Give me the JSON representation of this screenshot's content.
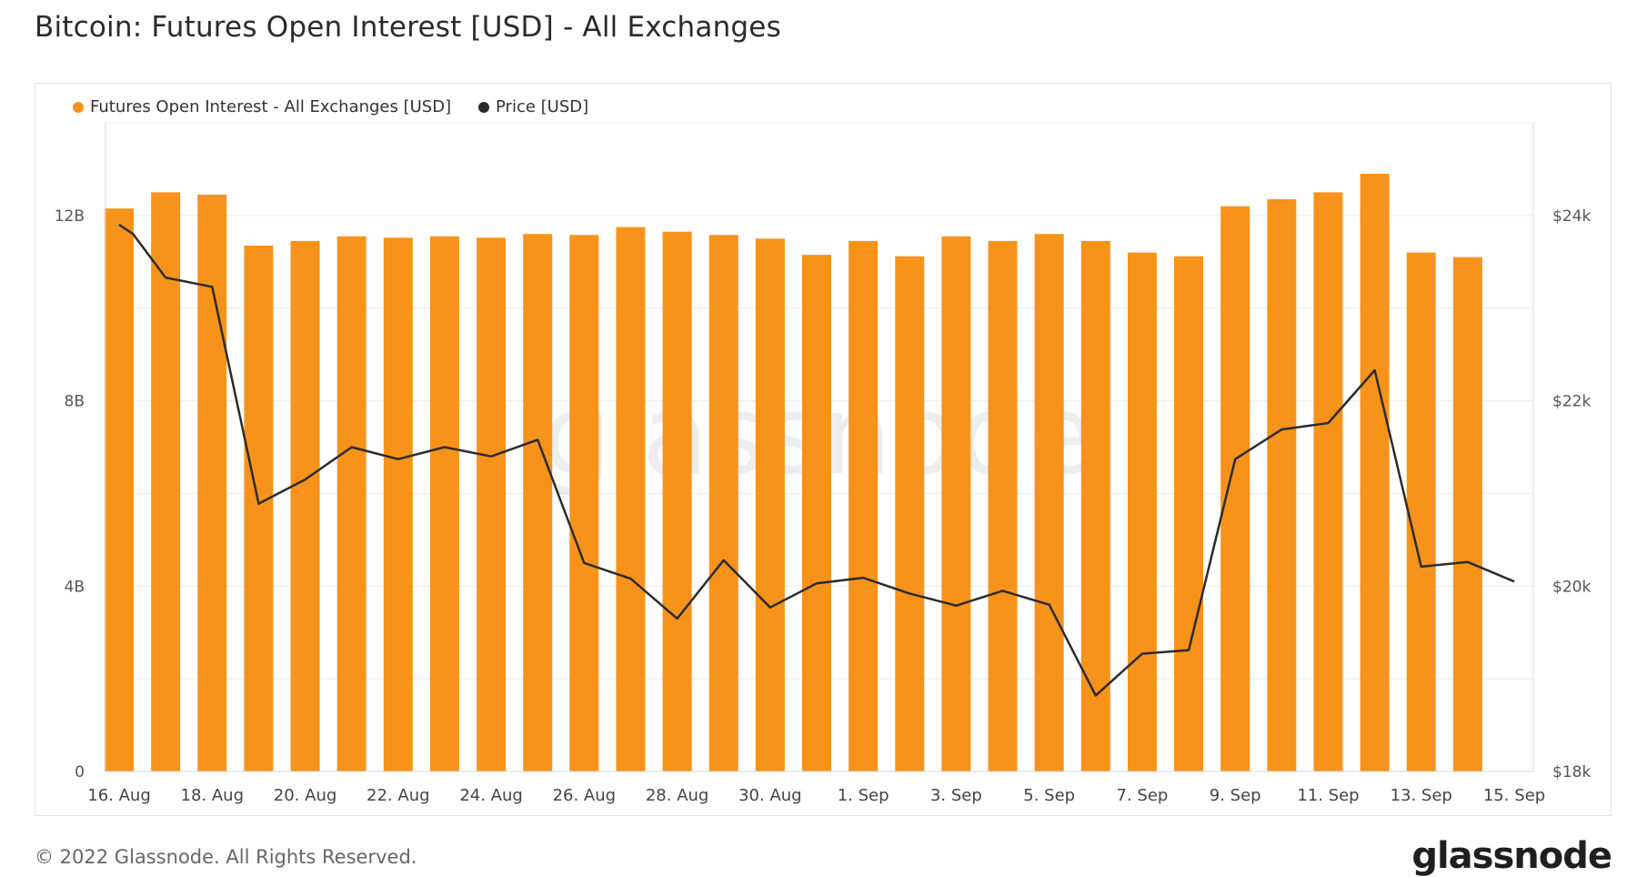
{
  "page": {
    "title": "Bitcoin: Futures Open Interest [USD] - All Exchanges",
    "copyright": "© 2022 Glassnode. All Rights Reserved.",
    "logo_text": "glassnode",
    "watermark_text": "glassnode"
  },
  "legend": [
    {
      "label": "Futures Open Interest - All Exchanges [USD]",
      "color": "#f7931a"
    },
    {
      "label": "Price [USD]",
      "color": "#2b2b2b"
    }
  ],
  "chart_data": {
    "type": "bar",
    "title": "Bitcoin: Futures Open Interest [USD] - All Exchanges",
    "x_tick_labels": [
      "16. Aug",
      "18. Aug",
      "20. Aug",
      "22. Aug",
      "24. Aug",
      "26. Aug",
      "28. Aug",
      "30. Aug",
      "1. Sep",
      "3. Sep",
      "5. Sep",
      "7. Sep",
      "9. Sep",
      "11. Sep",
      "13. Sep",
      "15. Sep"
    ],
    "x_tick_dates": [
      "2022-08-16",
      "2022-08-18",
      "2022-08-20",
      "2022-08-22",
      "2022-08-24",
      "2022-08-26",
      "2022-08-28",
      "2022-08-30",
      "2022-09-01",
      "2022-09-03",
      "2022-09-05",
      "2022-09-07",
      "2022-09-09",
      "2022-09-11",
      "2022-09-13",
      "2022-09-15"
    ],
    "dates": [
      "2022-08-16",
      "2022-08-17",
      "2022-08-18",
      "2022-08-19",
      "2022-08-20",
      "2022-08-21",
      "2022-08-22",
      "2022-08-23",
      "2022-08-24",
      "2022-08-25",
      "2022-08-26",
      "2022-08-27",
      "2022-08-28",
      "2022-08-29",
      "2022-08-30",
      "2022-08-31",
      "2022-09-01",
      "2022-09-02",
      "2022-09-03",
      "2022-09-04",
      "2022-09-05",
      "2022-09-06",
      "2022-09-07",
      "2022-09-08",
      "2022-09-09",
      "2022-09-10",
      "2022-09-11",
      "2022-09-12",
      "2022-09-13",
      "2022-09-14",
      "2022-09-15"
    ],
    "series": [
      {
        "name": "Futures Open Interest - All Exchanges [USD]",
        "type": "bar",
        "axis": "left",
        "color": "#f7931a",
        "values": [
          12150000000.0,
          12500000000.0,
          12450000000.0,
          11350000000.0,
          11450000000.0,
          11550000000.0,
          11520000000.0,
          11550000000.0,
          11520000000.0,
          11600000000.0,
          11580000000.0,
          11750000000.0,
          11650000000.0,
          11580000000.0,
          11500000000.0,
          11150000000.0,
          11450000000.0,
          11120000000.0,
          11550000000.0,
          11450000000.0,
          11600000000.0,
          11450000000.0,
          11200000000.0,
          11120000000.0,
          12200000000.0,
          12350000000.0,
          12500000000.0,
          12900000000.0,
          11200000000.0,
          11100000000.0,
          null
        ]
      },
      {
        "name": "Price [USD]",
        "type": "line",
        "axis": "right",
        "color": "#2b2b2b",
        "values": [
          [
            0,
            23900
          ],
          [
            0.3,
            23800
          ],
          [
            1,
            23330
          ],
          [
            2,
            23230
          ],
          [
            3,
            20890
          ],
          [
            4,
            21150
          ],
          [
            5,
            21500
          ],
          [
            6,
            21370
          ],
          [
            7,
            21500
          ],
          [
            8,
            21400
          ],
          [
            9,
            21580
          ],
          [
            10,
            20250
          ],
          [
            11,
            20080
          ],
          [
            12,
            19650
          ],
          [
            13,
            20280
          ],
          [
            14,
            19770
          ],
          [
            15,
            20030
          ],
          [
            16,
            20090
          ],
          [
            17,
            19920
          ],
          [
            18,
            19790
          ],
          [
            19,
            19950
          ],
          [
            20,
            19800
          ],
          [
            21,
            18820
          ],
          [
            22,
            19270
          ],
          [
            23,
            19310
          ],
          [
            24,
            21370
          ],
          [
            25,
            21690
          ],
          [
            26,
            21760
          ],
          [
            27,
            22330
          ],
          [
            28,
            20210
          ],
          [
            29,
            20260
          ],
          [
            30,
            20050
          ]
        ]
      }
    ],
    "y_left": {
      "ticks": [
        0,
        4000000000.0,
        8000000000.0,
        12000000000.0
      ],
      "tick_labels": [
        "0",
        "4B",
        "8B",
        "12B"
      ],
      "ylim": [
        0,
        14000000000.0
      ]
    },
    "y_right": {
      "ticks": [
        18000,
        20000,
        22000,
        24000
      ],
      "tick_labels": [
        "$18k",
        "$20k",
        "$22k",
        "$24k"
      ],
      "ylim": [
        18000,
        25000
      ]
    },
    "grid": true,
    "legend_position": "top-left"
  }
}
